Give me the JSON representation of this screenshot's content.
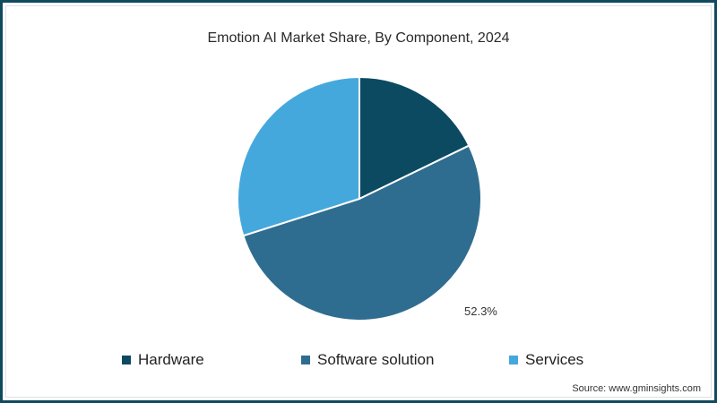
{
  "chart_data": {
    "type": "pie",
    "title": "Emotion AI Market Share, By Component, 2024",
    "categories": [
      "Hardware",
      "Software solution",
      "Services"
    ],
    "values": [
      17.8,
      52.3,
      29.9
    ],
    "colors": [
      "#0c4a62",
      "#2f6d90",
      "#45a8dc"
    ],
    "data_labels": [
      {
        "category": "Software solution",
        "text": "52.3%"
      }
    ],
    "legend_position": "bottom",
    "start_angle_deg": 0,
    "direction": "clockwise"
  },
  "title": "Emotion AI Market Share, By Component, 2024",
  "label_software": "52.3%",
  "legend": [
    {
      "label": "Hardware",
      "color": "#0c4a62"
    },
    {
      "label": "Software solution",
      "color": "#2f6d90"
    },
    {
      "label": "Services",
      "color": "#45a8dc"
    }
  ],
  "source": "Source: www.gminsights.com"
}
